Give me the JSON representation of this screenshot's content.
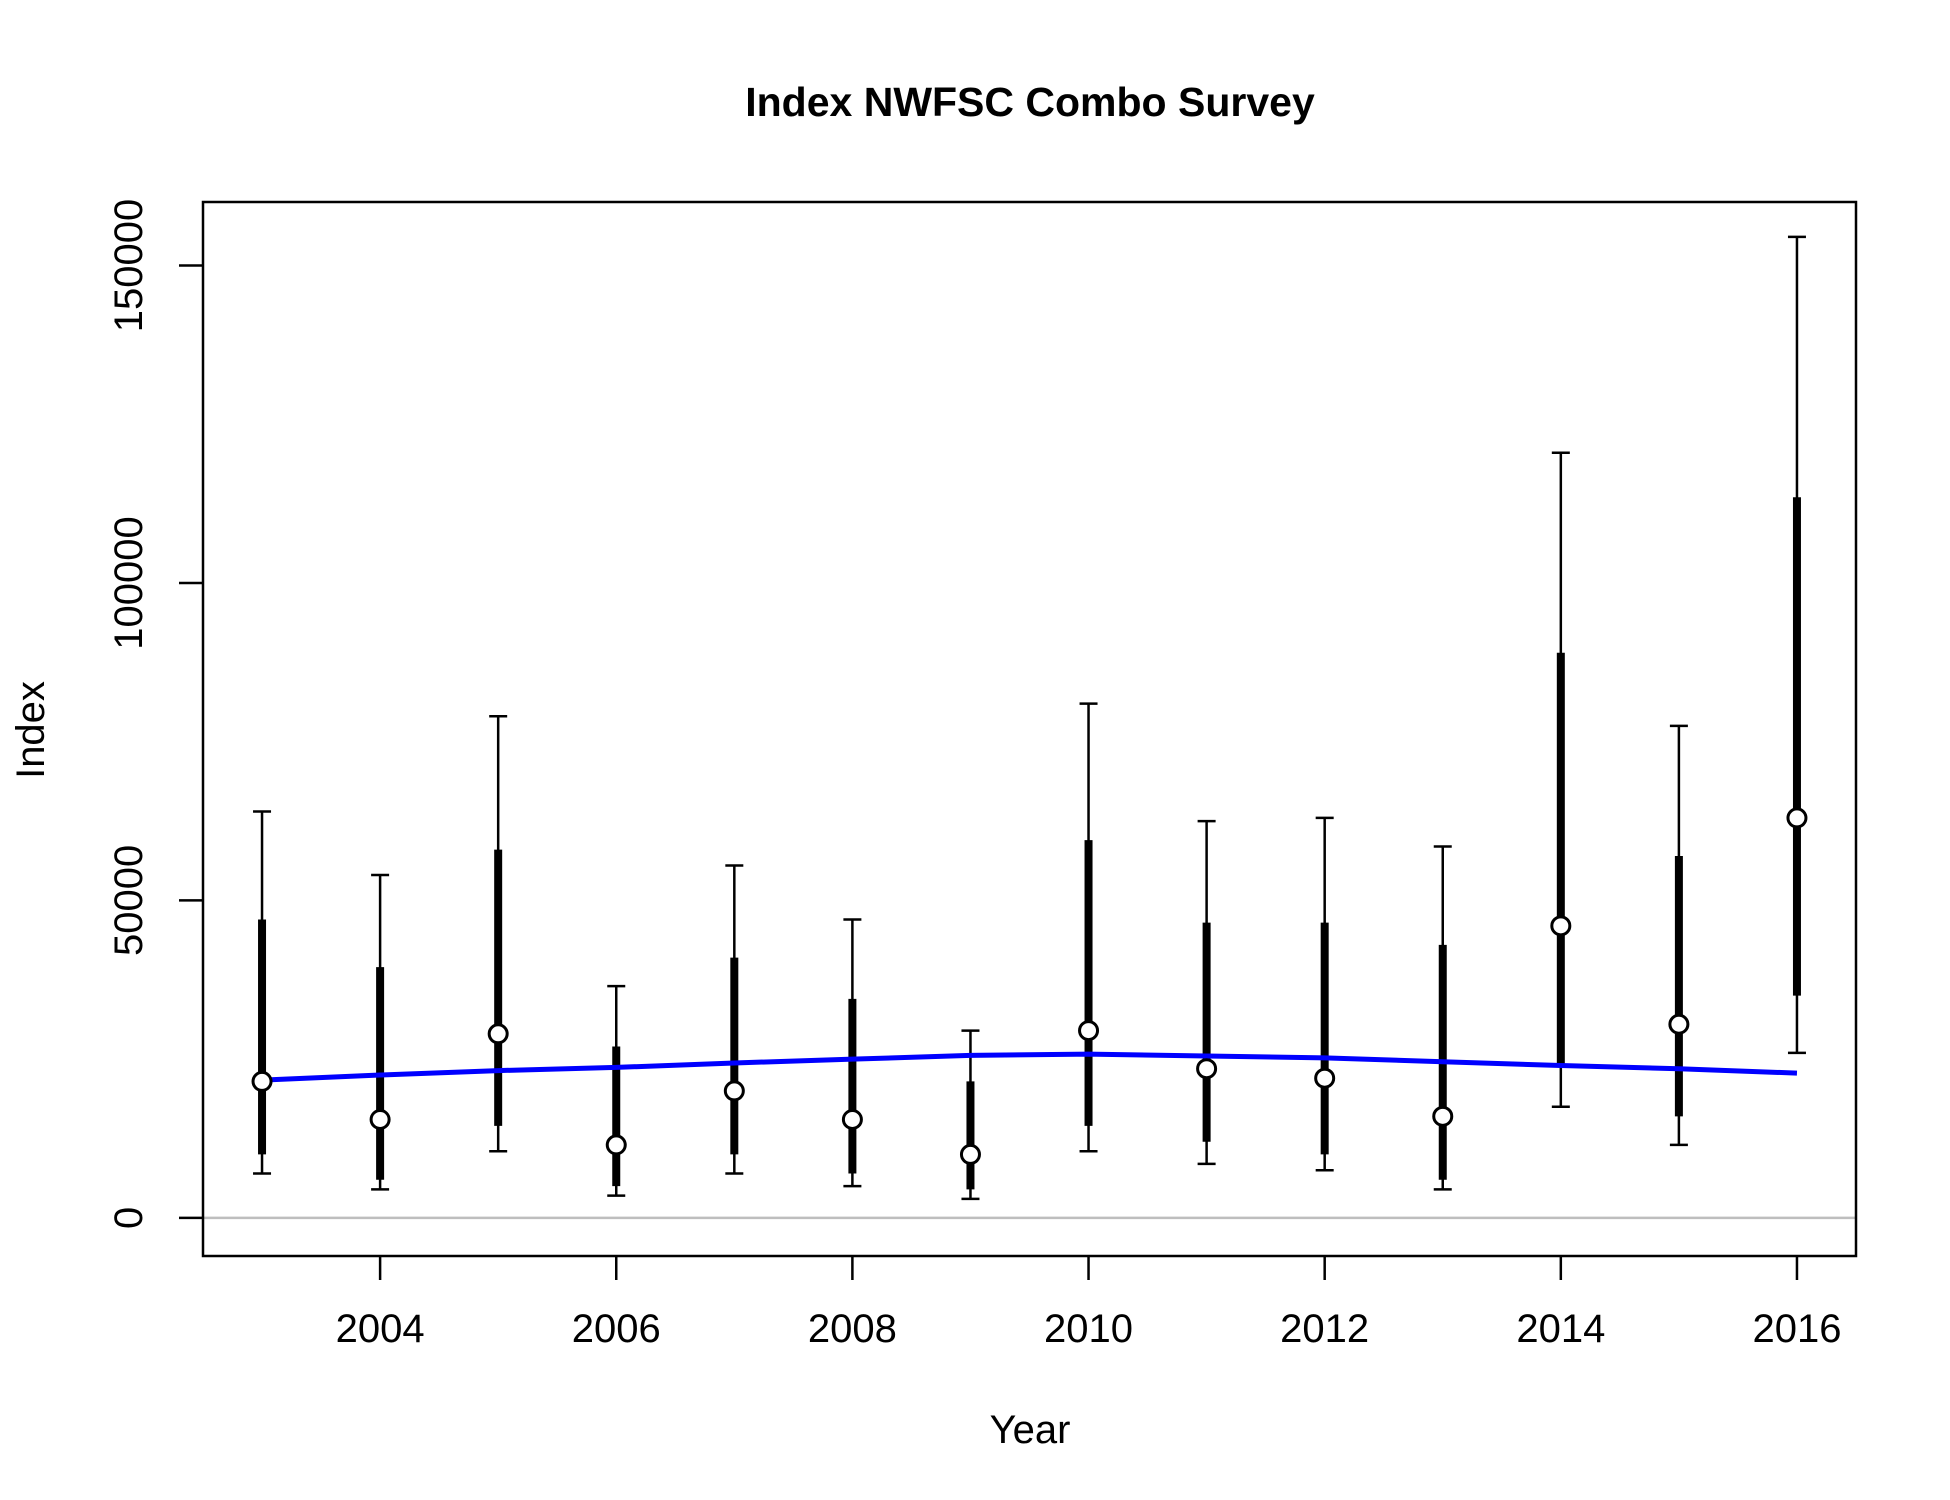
{
  "chart_data": {
    "type": "scatter",
    "title": "Index NWFSC Combo Survey",
    "xlabel": "Year",
    "ylabel": "Index",
    "xlim": [
      2002.5,
      2016.5
    ],
    "ylim": [
      -6000,
      160000
    ],
    "x_ticks": [
      "2004",
      "2006",
      "2008",
      "2010",
      "2012",
      "2014",
      "2016"
    ],
    "y_ticks": [
      "0",
      "50000",
      "100000",
      "150000"
    ],
    "colors": {
      "points": "#000000",
      "fit_line": "#0000ff",
      "zero_line": "#bebebe"
    },
    "observed": [
      {
        "year": 2003,
        "value": 21500,
        "inner_lo": 10000,
        "inner_hi": 47000,
        "outer_lo": 7000,
        "outer_hi": 64000
      },
      {
        "year": 2004,
        "value": 15500,
        "inner_lo": 6000,
        "inner_hi": 39500,
        "outer_lo": 4500,
        "outer_hi": 54000
      },
      {
        "year": 2005,
        "value": 29000,
        "inner_lo": 14500,
        "inner_hi": 58000,
        "outer_lo": 10500,
        "outer_hi": 79000
      },
      {
        "year": 2006,
        "value": 11500,
        "inner_lo": 5000,
        "inner_hi": 27000,
        "outer_lo": 3500,
        "outer_hi": 36500
      },
      {
        "year": 2007,
        "value": 20000,
        "inner_lo": 10000,
        "inner_hi": 41000,
        "outer_lo": 7000,
        "outer_hi": 55500
      },
      {
        "year": 2008,
        "value": 15500,
        "inner_lo": 7000,
        "inner_hi": 34500,
        "outer_lo": 5000,
        "outer_hi": 47000
      },
      {
        "year": 2009,
        "value": 10000,
        "inner_lo": 4500,
        "inner_hi": 21500,
        "outer_lo": 3000,
        "outer_hi": 29500
      },
      {
        "year": 2010,
        "value": 29500,
        "inner_lo": 14500,
        "inner_hi": 59500,
        "outer_lo": 10500,
        "outer_hi": 81000
      },
      {
        "year": 2011,
        "value": 23500,
        "inner_lo": 12000,
        "inner_hi": 46500,
        "outer_lo": 8500,
        "outer_hi": 62500
      },
      {
        "year": 2012,
        "value": 22000,
        "inner_lo": 10000,
        "inner_hi": 46500,
        "outer_lo": 7500,
        "outer_hi": 63000
      },
      {
        "year": 2013,
        "value": 16000,
        "inner_lo": 6000,
        "inner_hi": 43000,
        "outer_lo": 4500,
        "outer_hi": 58500
      },
      {
        "year": 2014,
        "value": 46000,
        "inner_lo": 24000,
        "inner_hi": 89000,
        "outer_lo": 17500,
        "outer_hi": 120500
      },
      {
        "year": 2015,
        "value": 30500,
        "inner_lo": 16000,
        "inner_hi": 57000,
        "outer_lo": 11500,
        "outer_hi": 77500
      },
      {
        "year": 2016,
        "value": 63000,
        "inner_lo": 35000,
        "inner_hi": 113500,
        "outer_lo": 26000,
        "outer_hi": 154500
      }
    ],
    "expected": [
      {
        "year": 2003,
        "value": 21700
      },
      {
        "year": 2004,
        "value": 22500
      },
      {
        "year": 2005,
        "value": 23200
      },
      {
        "year": 2006,
        "value": 23700
      },
      {
        "year": 2007,
        "value": 24400
      },
      {
        "year": 2008,
        "value": 25000
      },
      {
        "year": 2009,
        "value": 25600
      },
      {
        "year": 2010,
        "value": 25800
      },
      {
        "year": 2011,
        "value": 25500
      },
      {
        "year": 2012,
        "value": 25200
      },
      {
        "year": 2013,
        "value": 24600
      },
      {
        "year": 2014,
        "value": 24000
      },
      {
        "year": 2015,
        "value": 23500
      },
      {
        "year": 2016,
        "value": 22800
      }
    ]
  }
}
